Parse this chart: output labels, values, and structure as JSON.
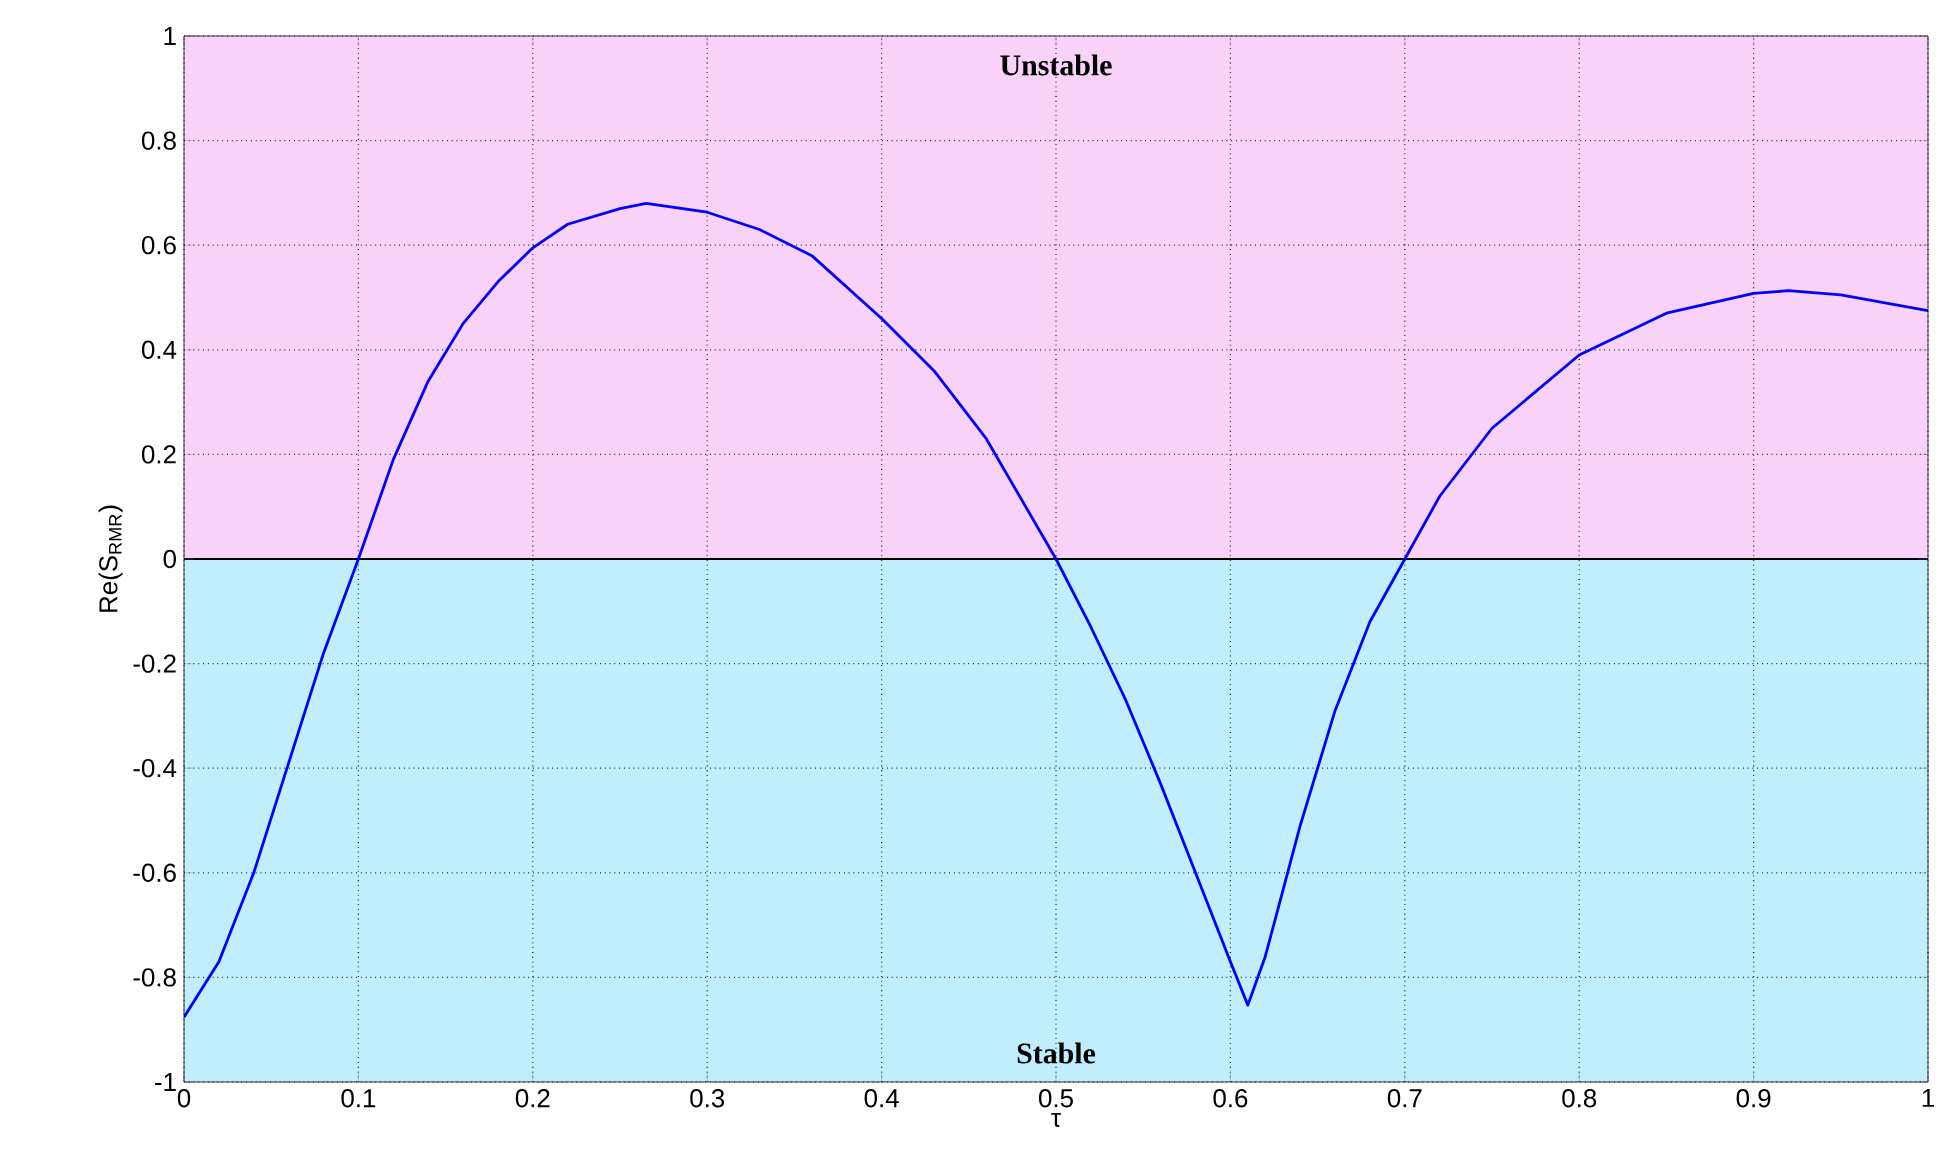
{
  "chart_data": {
    "type": "line",
    "xlabel": "τ",
    "ylabel": "Re(S$_{RMR}$)",
    "xlim": [
      0,
      1
    ],
    "ylim": [
      -1,
      1
    ],
    "xticks": [
      0,
      0.1,
      0.2,
      0.3,
      0.4,
      0.5,
      0.6,
      0.7,
      0.8,
      0.9,
      1
    ],
    "yticks": [
      -1,
      -0.8,
      -0.6,
      -0.4,
      -0.2,
      0,
      0.2,
      0.4,
      0.6,
      0.8,
      1
    ],
    "grid": true,
    "marker": "none",
    "line_style": "solid",
    "bands": [
      {
        "axis": "y",
        "from": 0,
        "to": 1,
        "label": "Unstable",
        "color": "#f9d2f9"
      },
      {
        "axis": "y",
        "from": -1,
        "to": 0,
        "label": "Stable",
        "color": "#c0eefd"
      }
    ],
    "ref_lines": [
      {
        "axis": "y",
        "value": 0,
        "color": "#000000"
      }
    ],
    "series": [
      {
        "color": "#0000ff",
        "x": [
          0,
          0.02,
          0.04,
          0.06,
          0.08,
          0.1,
          0.12,
          0.14,
          0.16,
          0.18,
          0.2,
          0.22,
          0.25,
          0.265,
          0.3,
          0.33,
          0.36,
          0.4,
          0.43,
          0.46,
          0.5,
          0.52,
          0.54,
          0.56,
          0.58,
          0.6,
          0.61,
          0.62,
          0.64,
          0.66,
          0.68,
          0.7,
          0.72,
          0.75,
          0.8,
          0.85,
          0.9,
          0.92,
          0.95,
          1
        ],
        "values": [
          -0.876,
          -0.77,
          -0.6,
          -0.39,
          -0.18,
          0,
          0.19,
          0.34,
          0.45,
          0.53,
          0.595,
          0.64,
          0.67,
          0.68,
          0.663,
          0.63,
          0.58,
          0.46,
          0.36,
          0.23,
          0,
          -0.13,
          -0.27,
          -0.43,
          -0.6,
          -0.77,
          -0.853,
          -0.76,
          -0.51,
          -0.29,
          -0.12,
          0,
          0.12,
          0.25,
          0.39,
          0.47,
          0.508,
          0.513,
          0.505,
          0.475
        ]
      }
    ]
  }
}
